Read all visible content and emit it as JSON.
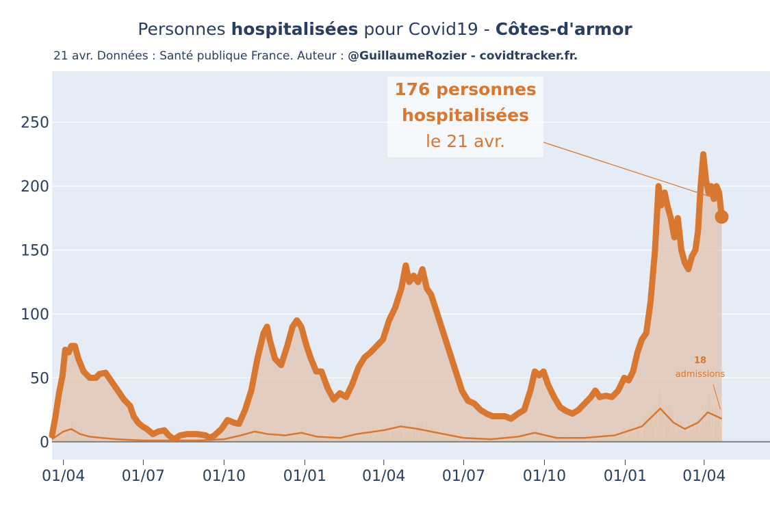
{
  "header": {
    "title_prefix": "Personnes ",
    "title_bold": "hospitalisées",
    "title_middle": " pour Covid19 - ",
    "title_department": "Côtes-d'armor",
    "subtitle_prefix": "21 avr. Données : Santé publique France. Auteur : ",
    "subtitle_bold": "@GuillaumeRozier - covidtracker.fr."
  },
  "annotation_main": {
    "line1": "176 personnes",
    "line2": "hospitalisées",
    "line3": "le 21 avr."
  },
  "annotation_admissions": {
    "value": "18",
    "label": "admissions"
  },
  "colors": {
    "accent": "#d8772f",
    "fill": "#e2c3ad",
    "plot_bg": "#e5ecf6",
    "grid": "#ffffff",
    "text": "#2a3f5f",
    "baseline": "#808080"
  },
  "chart_data": {
    "type": "line",
    "title": "Personnes hospitalisées pour Covid19 - Côtes-d'armor",
    "y_ticks": [
      0,
      50,
      100,
      150,
      200,
      250
    ],
    "ylim": [
      -14,
      290
    ],
    "x_tick_labels": [
      "01/04",
      "01/07",
      "01/10",
      "01/01",
      "01/04",
      "01/07",
      "01/10",
      "01/01",
      "01/04"
    ],
    "x_tick_dates": [
      "2020-04-01",
      "2020-07-01",
      "2020-10-01",
      "2021-01-01",
      "2021-04-01",
      "2021-07-01",
      "2021-10-01",
      "2022-01-01",
      "2022-04-01"
    ],
    "xlim": [
      "2020-03-19",
      "2022-06-15"
    ],
    "grid": true,
    "legend": "none",
    "series": [
      {
        "name": "hospitalisées",
        "style": "thick-line-with-area",
        "points": [
          [
            "2020-03-19",
            5
          ],
          [
            "2020-03-23",
            20
          ],
          [
            "2020-03-27",
            38
          ],
          [
            "2020-03-31",
            52
          ],
          [
            "2020-04-03",
            72
          ],
          [
            "2020-04-07",
            70
          ],
          [
            "2020-04-10",
            75
          ],
          [
            "2020-04-14",
            75
          ],
          [
            "2020-04-18",
            65
          ],
          [
            "2020-04-24",
            55
          ],
          [
            "2020-05-01",
            50
          ],
          [
            "2020-05-08",
            50
          ],
          [
            "2020-05-12",
            53
          ],
          [
            "2020-05-19",
            54
          ],
          [
            "2020-05-26",
            47
          ],
          [
            "2020-06-02",
            40
          ],
          [
            "2020-06-09",
            33
          ],
          [
            "2020-06-16",
            28
          ],
          [
            "2020-06-20",
            20
          ],
          [
            "2020-06-25",
            15
          ],
          [
            "2020-06-30",
            12
          ],
          [
            "2020-07-05",
            10
          ],
          [
            "2020-07-12",
            6
          ],
          [
            "2020-07-18",
            8
          ],
          [
            "2020-07-25",
            9
          ],
          [
            "2020-07-30",
            5
          ],
          [
            "2020-08-05",
            2
          ],
          [
            "2020-08-12",
            5
          ],
          [
            "2020-08-20",
            6
          ],
          [
            "2020-09-01",
            6
          ],
          [
            "2020-09-10",
            5
          ],
          [
            "2020-09-15",
            3
          ],
          [
            "2020-09-20",
            5
          ],
          [
            "2020-09-28",
            10
          ],
          [
            "2020-10-05",
            17
          ],
          [
            "2020-10-12",
            15
          ],
          [
            "2020-10-18",
            14
          ],
          [
            "2020-10-25",
            25
          ],
          [
            "2020-11-01",
            40
          ],
          [
            "2020-11-08",
            65
          ],
          [
            "2020-11-15",
            85
          ],
          [
            "2020-11-19",
            90
          ],
          [
            "2020-11-22",
            80
          ],
          [
            "2020-11-28",
            65
          ],
          [
            "2020-12-05",
            60
          ],
          [
            "2020-12-12",
            75
          ],
          [
            "2020-12-18",
            90
          ],
          [
            "2020-12-23",
            95
          ],
          [
            "2020-12-28",
            90
          ],
          [
            "2021-01-03",
            75
          ],
          [
            "2021-01-08",
            65
          ],
          [
            "2021-01-14",
            55
          ],
          [
            "2021-01-20",
            55
          ],
          [
            "2021-01-27",
            42
          ],
          [
            "2021-02-03",
            33
          ],
          [
            "2021-02-10",
            38
          ],
          [
            "2021-02-17",
            35
          ],
          [
            "2021-02-24",
            45
          ],
          [
            "2021-03-03",
            58
          ],
          [
            "2021-03-10",
            66
          ],
          [
            "2021-03-17",
            70
          ],
          [
            "2021-03-24",
            75
          ],
          [
            "2021-03-31",
            80
          ],
          [
            "2021-04-07",
            95
          ],
          [
            "2021-04-14",
            105
          ],
          [
            "2021-04-21",
            120
          ],
          [
            "2021-04-26",
            138
          ],
          [
            "2021-04-30",
            125
          ],
          [
            "2021-05-05",
            130
          ],
          [
            "2021-05-10",
            125
          ],
          [
            "2021-05-15",
            135
          ],
          [
            "2021-05-20",
            120
          ],
          [
            "2021-05-25",
            115
          ],
          [
            "2021-06-01",
            100
          ],
          [
            "2021-06-08",
            85
          ],
          [
            "2021-06-15",
            70
          ],
          [
            "2021-06-22",
            55
          ],
          [
            "2021-06-29",
            40
          ],
          [
            "2021-07-06",
            32
          ],
          [
            "2021-07-13",
            30
          ],
          [
            "2021-07-20",
            25
          ],
          [
            "2021-07-27",
            22
          ],
          [
            "2021-08-03",
            20
          ],
          [
            "2021-08-10",
            20
          ],
          [
            "2021-08-17",
            20
          ],
          [
            "2021-08-24",
            18
          ],
          [
            "2021-09-01",
            22
          ],
          [
            "2021-09-08",
            25
          ],
          [
            "2021-09-15",
            40
          ],
          [
            "2021-09-20",
            55
          ],
          [
            "2021-09-25",
            52
          ],
          [
            "2021-09-30",
            55
          ],
          [
            "2021-10-05",
            45
          ],
          [
            "2021-10-12",
            35
          ],
          [
            "2021-10-19",
            27
          ],
          [
            "2021-10-26",
            24
          ],
          [
            "2021-11-02",
            22
          ],
          [
            "2021-11-09",
            25
          ],
          [
            "2021-11-16",
            30
          ],
          [
            "2021-11-23",
            35
          ],
          [
            "2021-11-28",
            40
          ],
          [
            "2021-12-03",
            35
          ],
          [
            "2021-12-10",
            36
          ],
          [
            "2021-12-17",
            35
          ],
          [
            "2021-12-24",
            40
          ],
          [
            "2021-12-31",
            50
          ],
          [
            "2022-01-05",
            48
          ],
          [
            "2022-01-10",
            55
          ],
          [
            "2022-01-15",
            70
          ],
          [
            "2022-01-20",
            80
          ],
          [
            "2022-01-25",
            85
          ],
          [
            "2022-01-30",
            110
          ],
          [
            "2022-02-04",
            150
          ],
          [
            "2022-02-08",
            200
          ],
          [
            "2022-02-11",
            185
          ],
          [
            "2022-02-15",
            195
          ],
          [
            "2022-02-18",
            185
          ],
          [
            "2022-02-22",
            175
          ],
          [
            "2022-02-26",
            160
          ],
          [
            "2022-03-02",
            175
          ],
          [
            "2022-03-06",
            150
          ],
          [
            "2022-03-10",
            140
          ],
          [
            "2022-03-14",
            135
          ],
          [
            "2022-03-18",
            145
          ],
          [
            "2022-03-22",
            150
          ],
          [
            "2022-03-25",
            165
          ],
          [
            "2022-03-28",
            200
          ],
          [
            "2022-03-31",
            225
          ],
          [
            "2022-04-03",
            205
          ],
          [
            "2022-04-06",
            195
          ],
          [
            "2022-04-09",
            200
          ],
          [
            "2022-04-12",
            190
          ],
          [
            "2022-04-15",
            200
          ],
          [
            "2022-04-18",
            195
          ],
          [
            "2022-04-21",
            176
          ]
        ]
      },
      {
        "name": "admissions",
        "style": "thin-line",
        "points": [
          [
            "2020-03-19",
            2
          ],
          [
            "2020-04-01",
            8
          ],
          [
            "2020-04-10",
            10
          ],
          [
            "2020-04-20",
            6
          ],
          [
            "2020-05-01",
            4
          ],
          [
            "2020-05-15",
            3
          ],
          [
            "2020-06-01",
            2
          ],
          [
            "2020-07-01",
            1
          ],
          [
            "2020-08-01",
            1
          ],
          [
            "2020-09-01",
            1
          ],
          [
            "2020-10-01",
            2
          ],
          [
            "2020-10-20",
            5
          ],
          [
            "2020-11-05",
            8
          ],
          [
            "2020-11-20",
            6
          ],
          [
            "2020-12-10",
            5
          ],
          [
            "2020-12-28",
            7
          ],
          [
            "2021-01-15",
            4
          ],
          [
            "2021-02-10",
            3
          ],
          [
            "2021-03-01",
            6
          ],
          [
            "2021-04-01",
            9
          ],
          [
            "2021-04-20",
            12
          ],
          [
            "2021-05-10",
            10
          ],
          [
            "2021-06-01",
            7
          ],
          [
            "2021-07-01",
            3
          ],
          [
            "2021-08-01",
            2
          ],
          [
            "2021-09-01",
            4
          ],
          [
            "2021-09-20",
            7
          ],
          [
            "2021-10-15",
            3
          ],
          [
            "2021-11-15",
            3
          ],
          [
            "2021-12-20",
            5
          ],
          [
            "2022-01-20",
            12
          ],
          [
            "2022-02-10",
            26
          ],
          [
            "2022-02-25",
            15
          ],
          [
            "2022-03-10",
            10
          ],
          [
            "2022-03-25",
            15
          ],
          [
            "2022-04-05",
            23
          ],
          [
            "2022-04-15",
            20
          ],
          [
            "2022-04-21",
            18
          ]
        ]
      }
    ],
    "highlight": {
      "date": "2022-04-21",
      "value": 176
    },
    "admissions_latest": {
      "date": "2022-04-21",
      "value": 18
    }
  }
}
